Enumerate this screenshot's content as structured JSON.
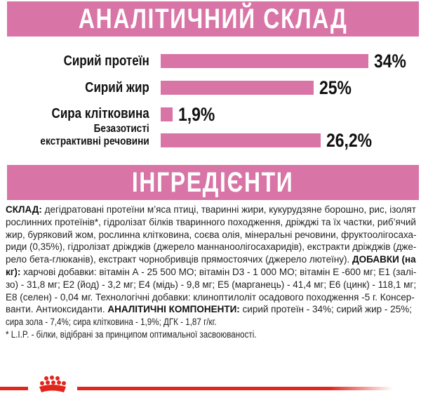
{
  "header": {
    "title": "АНАЛІТИЧНИЙ СКЛАД"
  },
  "chart_data": {
    "type": "bar",
    "orientation": "horizontal",
    "categories": [
      "Сирий протеїн",
      "Сирий жир",
      "Сира клітковина",
      "Безазотисті екстрактивні речовини"
    ],
    "values": [
      34,
      25,
      1.9,
      26.2
    ],
    "value_labels": [
      "34%",
      "25%",
      "1,9%",
      "26,2%"
    ],
    "xlim": [
      0,
      34
    ],
    "bar_color": "#d874a6",
    "grid": false
  },
  "labels": {
    "nfe_line1": "Безазотисті",
    "nfe_line2": "екстрактивні речовини"
  },
  "section2": {
    "title": "ІНГРЕДІЄНТИ"
  },
  "ingredients_lines": [
    [
      {
        "b": "СКЛАД:"
      },
      {
        "t": " дегідратовані протеїни м’яса птиці, тваринні жири, кукурудзяне борошно, рис, ізолят"
      }
    ],
    [
      {
        "t": "рослинних протеїнів*, гідролізат білків тваринного походження, дріжджі та їх частки, риб’ячий"
      }
    ],
    [
      {
        "t": "жир, буряковий жом, рослинна клітковина, соєва олія, мінеральні речовини, фруктоолігосаха-"
      }
    ],
    [
      {
        "t": "риди (0,35%), гідролізат дріжджів (джерело маннаноолігосахаридів), екстракти дріжджів (дже-"
      }
    ],
    [
      {
        "t": "рело бета-глюканів), екстракт чорнобривців прямостоячих (джерело лютеїну). "
      },
      {
        "b": "ДОБАВКИ (на"
      }
    ],
    [
      {
        "b": "кг):"
      },
      {
        "t": " харчові добавки: вітамін А - 25 500 МО; вітамін D3 - 1 000 МО; вітамін Е -600 мг; Е1 (залі-"
      }
    ],
    [
      {
        "t": "зо) - 31,8 мг; Е2 (йод) - 3,2 мг; Е4 (мідь) - 9,8 мг; Е5 (марганець) - 41,4 мг; Е6 (цинк) - 118,1 мг;"
      }
    ],
    [
      {
        "t": "Е8 (селен) - 0,04 мг. Технологічні добавки: клиноптилоліт осадового походження -5 г. Консер-"
      }
    ],
    [
      {
        "t": "ванти. Антиоксиданти. "
      },
      {
        "b": "АНАЛІТИЧНІ КОМПОНЕНТИ:"
      },
      {
        "t": " сирий протеїн - 34%; сирий жир - 25%;"
      }
    ],
    [
      {
        "t": "сира зола - 7,4%; сира клітковина - 1,9%; ДГК - 1,87 г/кг."
      }
    ],
    [
      {
        "t": "* L.I.P. - білки, відібрані за принципом оптимальної засвоюваності."
      }
    ]
  ],
  "colors": {
    "pink": "#d874a6",
    "brand_red": "#e1261c"
  },
  "footer": {
    "logo": "royal-canin-crown"
  }
}
